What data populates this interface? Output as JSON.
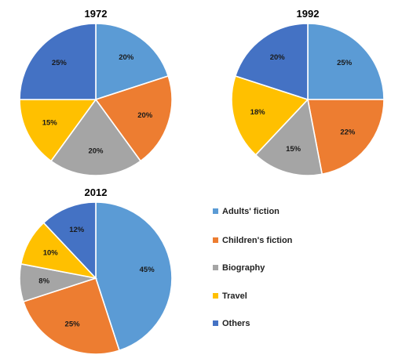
{
  "chart_data": [
    {
      "type": "pie",
      "title": "1972",
      "categories": [
        "Adults' fiction",
        "Children's fiction",
        "Biography",
        "Travel",
        "Others"
      ],
      "values": [
        20,
        20,
        20,
        15,
        25
      ],
      "labels": [
        "20%",
        "20%",
        "20%",
        "15%",
        "25%"
      ]
    },
    {
      "type": "pie",
      "title": "1992",
      "categories": [
        "Adults' fiction",
        "Children's fiction",
        "Biography",
        "Travel",
        "Others"
      ],
      "values": [
        25,
        22,
        15,
        18,
        20
      ],
      "labels": [
        "25%",
        "22%",
        "15%",
        "18%",
        "20%"
      ]
    },
    {
      "type": "pie",
      "title": "2012",
      "categories": [
        "Adults' fiction",
        "Children's fiction",
        "Biography",
        "Travel",
        "Others"
      ],
      "values": [
        45,
        25,
        8,
        10,
        12
      ],
      "labels": [
        "45%",
        "25%",
        "8%",
        "10%",
        "12%"
      ]
    }
  ],
  "legend": {
    "placement": "bottom-right",
    "items": [
      {
        "label": "Adults' fiction",
        "color": "#5b9bd5"
      },
      {
        "label": "Children's fiction",
        "color": "#ed7d31"
      },
      {
        "label": "Biography",
        "color": "#a5a5a5"
      },
      {
        "label": "Travel",
        "color": "#ffc000"
      },
      {
        "label": "Others",
        "color": "#4472c4"
      }
    ]
  }
}
